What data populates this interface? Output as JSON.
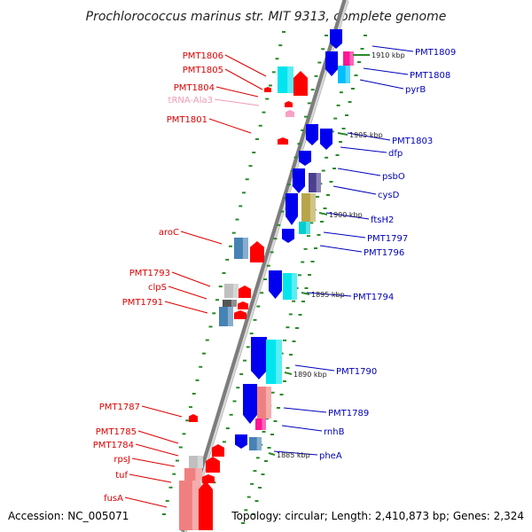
{
  "title": "Prochlorococcus marinus str. MIT 9313, complete genome",
  "accession": "Accession: NC_005071",
  "summary": "Topology: circular; Length: 2,410,873 bp; Genes: 2,324",
  "colors": {
    "left_label": "#dd0000",
    "right_label": "#0000bb",
    "trna_label": "#f09ab8",
    "backbone_dark": "#8a8a8a",
    "backbone_light": "#cfcfcf",
    "tick": "#2a8a2a"
  },
  "kbp_ticks": [
    "1910 kbp",
    "1905 kbp",
    "1900 kbp",
    "1895 kbp",
    "1890 kbp",
    "1885 kbp"
  ],
  "left_genes": [
    {
      "label": "PMT1806",
      "color": "red"
    },
    {
      "label": "PMT1805",
      "color": "red"
    },
    {
      "label": "PMT1804",
      "color": "red"
    },
    {
      "label": "tRNA-Ala3",
      "color": "pink"
    },
    {
      "label": "PMT1801",
      "color": "red"
    },
    {
      "label": "aroC",
      "color": "red"
    },
    {
      "label": "PMT1793",
      "color": "red"
    },
    {
      "label": "clpS",
      "color": "red"
    },
    {
      "label": "PMT1791",
      "color": "red"
    },
    {
      "label": "PMT1787",
      "color": "red"
    },
    {
      "label": "PMT1785",
      "color": "red"
    },
    {
      "label": "PMT1784",
      "color": "red"
    },
    {
      "label": "rpsJ",
      "color": "red"
    },
    {
      "label": "tuf",
      "color": "red"
    },
    {
      "label": "fusA",
      "color": "red"
    }
  ],
  "right_genes": [
    {
      "label": "PMT1809",
      "color": "blue"
    },
    {
      "label": "PMT1808",
      "color": "blue"
    },
    {
      "label": "pyrB",
      "color": "blue"
    },
    {
      "label": "PMT1803",
      "color": "blue"
    },
    {
      "label": "dfp",
      "color": "blue"
    },
    {
      "label": "psbO",
      "color": "blue"
    },
    {
      "label": "cysD",
      "color": "blue"
    },
    {
      "label": "ftsH2",
      "color": "blue"
    },
    {
      "label": "PMT1797",
      "color": "blue"
    },
    {
      "label": "PMT1796",
      "color": "blue"
    },
    {
      "label": "PMT1794",
      "color": "blue"
    },
    {
      "label": "PMT1790",
      "color": "blue"
    },
    {
      "label": "PMT1789",
      "color": "blue"
    },
    {
      "label": "rnhB",
      "color": "blue"
    },
    {
      "label": "pheA",
      "color": "blue"
    }
  ]
}
